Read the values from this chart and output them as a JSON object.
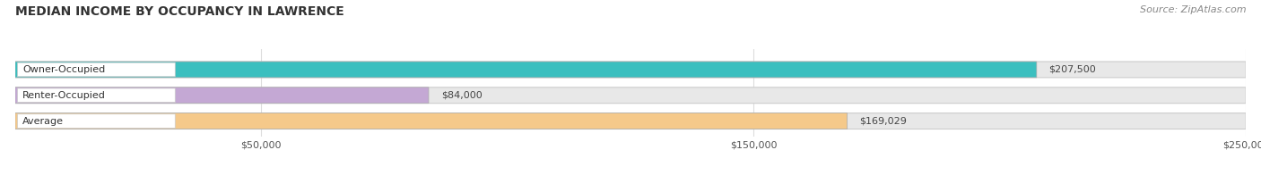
{
  "title": "MEDIAN INCOME BY OCCUPANCY IN LAWRENCE",
  "source": "Source: ZipAtlas.com",
  "categories": [
    "Owner-Occupied",
    "Renter-Occupied",
    "Average"
  ],
  "values": [
    207500,
    84000,
    169029
  ],
  "bar_colors": [
    "#3bbfbf",
    "#c4a8d4",
    "#f5c98a"
  ],
  "bar_labels": [
    "$207,500",
    "$84,000",
    "$169,029"
  ],
  "xlim": [
    0,
    250000
  ],
  "xtick_vals": [
    50000,
    150000,
    250000
  ],
  "xtick_labels": [
    "$50,000",
    "$150,000",
    "$250,000"
  ],
  "bar_bg_color": "#e8e8e8",
  "title_fontsize": 10,
  "label_fontsize": 8,
  "source_fontsize": 8
}
